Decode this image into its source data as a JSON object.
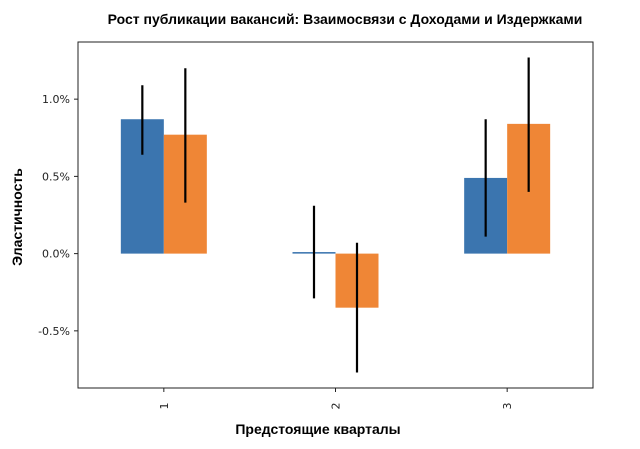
{
  "chart_data": {
    "type": "bar",
    "title": "Рост публикации вакансий: Взаимосвязи с Доходами и Издержками",
    "xlabel": "Предстоящие кварталы",
    "ylabel": "Эластичность",
    "categories": [
      "1",
      "2",
      "3"
    ],
    "y_tick_values": [
      1.0,
      0.5,
      0.0,
      -0.5
    ],
    "y_tick_labels": [
      "1.0%",
      "0.5%",
      "0.0%",
      "-0.5%"
    ],
    "ylim": [
      -0.87,
      1.37
    ],
    "grid": false,
    "legend": "none",
    "x_tick_rotation": "vertical",
    "series": [
      {
        "color": "#3b75af",
        "values": [
          0.87,
          0.01,
          0.49
        ],
        "error_low": [
          0.64,
          -0.29,
          0.11
        ],
        "error_high": [
          1.09,
          0.31,
          0.87
        ]
      },
      {
        "color": "#ef8636",
        "values": [
          0.77,
          -0.35,
          0.84
        ],
        "error_low": [
          0.33,
          -0.77,
          0.4
        ],
        "error_high": [
          1.2,
          0.07,
          1.27
        ]
      }
    ]
  }
}
